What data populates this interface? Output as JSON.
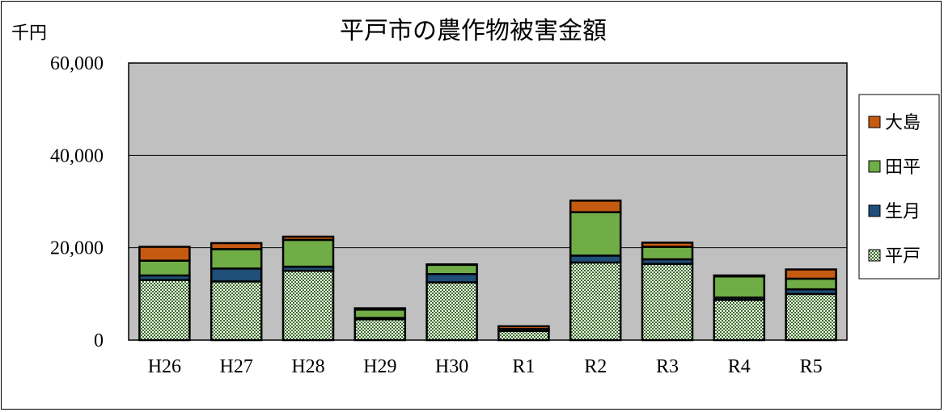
{
  "chart_data": {
    "type": "bar",
    "stacked": true,
    "title": "平戸市の農作物被害金額",
    "ylabel": "千円",
    "xlabel": "",
    "ylim": [
      0,
      60000
    ],
    "yticks": [
      "60,000",
      "40,000",
      "20,000",
      "0"
    ],
    "ytick_values": [
      60000,
      40000,
      20000,
      0
    ],
    "categories": [
      "H26",
      "H27",
      "H28",
      "H29",
      "H30",
      "R1",
      "R2",
      "R3",
      "R4",
      "R5"
    ],
    "series": [
      {
        "name": "平戸",
        "color": "#c8dcc0",
        "pattern": "checker-green",
        "values": [
          13000,
          12700,
          15000,
          4500,
          12500,
          2000,
          16800,
          16500,
          8700,
          10000
        ]
      },
      {
        "name": "生月",
        "color": "#1f4e79",
        "values": [
          1000,
          2800,
          900,
          300,
          1800,
          200,
          1500,
          1000,
          500,
          1000
        ]
      },
      {
        "name": "田平",
        "color": "#70ad47",
        "values": [
          3200,
          4200,
          5800,
          1800,
          2000,
          200,
          9400,
          2700,
          4600,
          2300
        ]
      },
      {
        "name": "大島",
        "color": "#c55a11",
        "values": [
          3000,
          1300,
          700,
          300,
          100,
          600,
          2500,
          900,
          200,
          2000
        ]
      }
    ],
    "legend_position": "right",
    "grid": true,
    "plot_background": "#c0c0c0"
  }
}
